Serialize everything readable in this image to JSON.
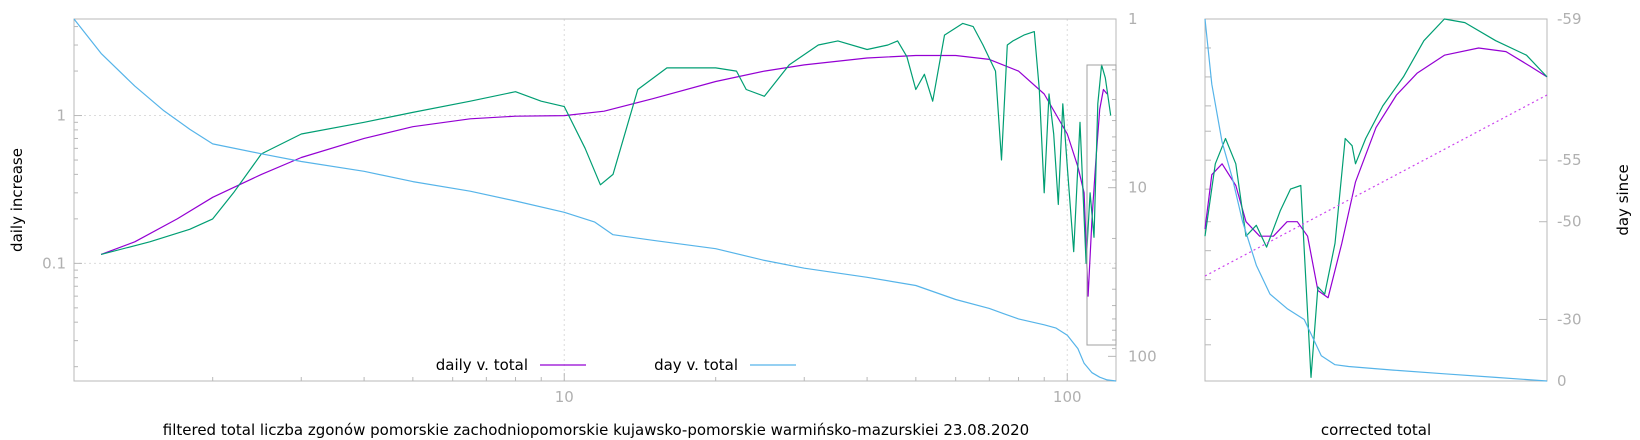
{
  "chart_data": [
    {
      "type": "line",
      "xscale": "log",
      "yscale": "log",
      "xlim": [
        1.06,
        125
      ],
      "ylim": [
        0.016,
        4.5
      ],
      "ylabel": "daily increase",
      "xlabel": "filtered total liczba zgonów pomorskie zachodniopomorskie kujawsko-pomorskie warmińsko-mazurskiei 23.08.2020",
      "x_ticks": [
        10,
        100
      ],
      "y_ticks": [
        {
          "v": 1,
          "label": "1"
        },
        {
          "v": 0.1,
          "label": "0.1"
        }
      ],
      "y2label": "",
      "y2scale": "log",
      "y2lim": [
        1,
        140
      ],
      "y2_ticks": [
        {
          "v": 1,
          "label": "1"
        },
        {
          "v": 10,
          "label": "10"
        },
        {
          "v": 100,
          "label": "100"
        }
      ],
      "legend": {
        "position": "bottom-center"
      },
      "series": [
        {
          "name": "daily v. total",
          "color": "#9400d3",
          "axis": "y",
          "x": [
            1.2,
            1.4,
            1.7,
            2.0,
            2.5,
            3.0,
            4.0,
            5.0,
            6.5,
            8.0,
            10.0,
            12.0,
            15.0,
            20.0,
            25.0,
            30.0,
            40.0,
            50.0,
            60.0,
            70.0,
            80.0,
            90.0,
            100.0,
            105.0,
            108.0,
            110.0,
            112.0,
            114.0,
            116.0,
            118.0,
            120.0
          ],
          "y": [
            0.115,
            0.14,
            0.2,
            0.28,
            0.4,
            0.52,
            0.7,
            0.84,
            0.95,
            0.99,
            1.0,
            1.07,
            1.3,
            1.7,
            2.0,
            2.2,
            2.45,
            2.55,
            2.55,
            2.4,
            2.0,
            1.4,
            0.75,
            0.45,
            0.3,
            0.06,
            0.2,
            0.5,
            1.1,
            1.5,
            1.4
          ]
        },
        {
          "name": "",
          "color": "#009e73",
          "axis": "y",
          "x": [
            1.2,
            1.5,
            1.8,
            2.0,
            2.2,
            2.5,
            3.0,
            4.0,
            5.0,
            6.5,
            8.0,
            9.0,
            10.0,
            11.0,
            11.8,
            12.5,
            14.0,
            16.0,
            20.0,
            22.0,
            23.0,
            25.0,
            28.0,
            32.0,
            35.0,
            40.0,
            44.0,
            46.0,
            48.0,
            50.0,
            52.0,
            54.0,
            57.0,
            62.0,
            65.0,
            68.0,
            72.0,
            74.0,
            76.0,
            78.0,
            82.0,
            86.0,
            88.0,
            90.0,
            92.0,
            94.0,
            96.0,
            98.0,
            100.0,
            103.0,
            106.0,
            109.0,
            111.0,
            113.0,
            115.0,
            117.0,
            119.0,
            122.0
          ],
          "y": [
            0.115,
            0.14,
            0.17,
            0.2,
            0.3,
            0.55,
            0.75,
            0.9,
            1.05,
            1.25,
            1.45,
            1.25,
            1.15,
            0.6,
            0.34,
            0.4,
            1.5,
            2.1,
            2.1,
            2.0,
            1.5,
            1.35,
            2.2,
            3.0,
            3.2,
            2.8,
            3.0,
            3.2,
            2.5,
            1.5,
            1.9,
            1.25,
            3.5,
            4.2,
            4.0,
            3.0,
            2.0,
            0.5,
            3.0,
            3.2,
            3.5,
            3.7,
            1.5,
            0.3,
            1.4,
            0.75,
            0.25,
            1.2,
            0.45,
            0.12,
            0.9,
            0.1,
            0.3,
            0.15,
            1.2,
            2.2,
            1.8,
            1.0
          ]
        },
        {
          "name": "day v. total",
          "color": "#56b4e9",
          "axis": "y2",
          "x": [
            1.06,
            1.2,
            1.4,
            1.6,
            1.8,
            2.0,
            2.5,
            3.0,
            4.0,
            5.0,
            6.5,
            8.0,
            10.0,
            11.5,
            12.5,
            15.0,
            20.0,
            25.0,
            30.0,
            40.0,
            50.0,
            60.0,
            70.0,
            75.0,
            80.0,
            90.0,
            95.0,
            100.0,
            105.0,
            108.0,
            112.0,
            116.0,
            120.0,
            125.0
          ],
          "y": [
            1.0,
            1.6,
            2.5,
            3.5,
            4.5,
            5.5,
            6.3,
            7.0,
            8.0,
            9.2,
            10.5,
            12.0,
            14.0,
            16.0,
            19.0,
            20.5,
            23.0,
            27.0,
            30.0,
            34.0,
            38.0,
            46.0,
            52.0,
            56.0,
            60.0,
            65.0,
            68.0,
            75.0,
            90.0,
            110.0,
            125.0,
            133.0,
            138.0,
            140.0
          ]
        }
      ]
    },
    {
      "type": "line",
      "xlabel": "corrected total",
      "ylabel": "",
      "y2label": "day since",
      "y2_ticks": [
        {
          "v": -59,
          "label": "-59"
        },
        {
          "v": -55,
          "label": "-55"
        },
        {
          "v": -50,
          "label": "-50"
        },
        {
          "v": -30,
          "label": "-30"
        },
        {
          "v": 0,
          "label": "0"
        }
      ],
      "series": [
        {
          "name": "",
          "color": "#9400d3",
          "points": [
            [
              0.0,
              0.58
            ],
            [
              0.02,
              0.43
            ],
            [
              0.05,
              0.4
            ],
            [
              0.09,
              0.46
            ],
            [
              0.12,
              0.56
            ],
            [
              0.16,
              0.6
            ],
            [
              0.2,
              0.6
            ],
            [
              0.24,
              0.56
            ],
            [
              0.27,
              0.56
            ],
            [
              0.3,
              0.6
            ],
            [
              0.33,
              0.75
            ],
            [
              0.36,
              0.77
            ],
            [
              0.4,
              0.62
            ],
            [
              0.44,
              0.45
            ],
            [
              0.5,
              0.3
            ],
            [
              0.56,
              0.21
            ],
            [
              0.62,
              0.15
            ],
            [
              0.7,
              0.1
            ],
            [
              0.8,
              0.08
            ],
            [
              0.88,
              0.09
            ],
            [
              0.95,
              0.13
            ],
            [
              1.0,
              0.16
            ]
          ]
        },
        {
          "name": "",
          "color": "#009e73",
          "points": [
            [
              0.0,
              0.6
            ],
            [
              0.03,
              0.4
            ],
            [
              0.06,
              0.33
            ],
            [
              0.09,
              0.4
            ],
            [
              0.12,
              0.6
            ],
            [
              0.15,
              0.57
            ],
            [
              0.18,
              0.63
            ],
            [
              0.22,
              0.53
            ],
            [
              0.25,
              0.47
            ],
            [
              0.28,
              0.46
            ],
            [
              0.31,
              0.99
            ],
            [
              0.33,
              0.74
            ],
            [
              0.35,
              0.76
            ],
            [
              0.38,
              0.62
            ],
            [
              0.41,
              0.33
            ],
            [
              0.43,
              0.35
            ],
            [
              0.44,
              0.4
            ],
            [
              0.47,
              0.33
            ],
            [
              0.52,
              0.24
            ],
            [
              0.58,
              0.16
            ],
            [
              0.64,
              0.06
            ],
            [
              0.7,
              0.0
            ],
            [
              0.76,
              0.01
            ],
            [
              0.85,
              0.06
            ],
            [
              0.94,
              0.1
            ],
            [
              1.0,
              0.16
            ]
          ]
        },
        {
          "name": "",
          "color": "#56b4e9",
          "points": [
            [
              0.0,
              0.0
            ],
            [
              0.02,
              0.18
            ],
            [
              0.05,
              0.34
            ],
            [
              0.08,
              0.44
            ],
            [
              0.11,
              0.56
            ],
            [
              0.15,
              0.68
            ],
            [
              0.19,
              0.76
            ],
            [
              0.24,
              0.8
            ],
            [
              0.29,
              0.83
            ],
            [
              0.31,
              0.87
            ],
            [
              0.34,
              0.93
            ],
            [
              0.38,
              0.955
            ],
            [
              0.42,
              0.96
            ],
            [
              0.55,
              0.97
            ],
            [
              0.7,
              0.98
            ],
            [
              0.85,
              0.99
            ],
            [
              1.0,
              1.0
            ]
          ]
        },
        {
          "name": "",
          "color": "#cc44ee",
          "dashed": true,
          "points": [
            [
              0.0,
              0.71
            ],
            [
              1.0,
              0.21
            ]
          ]
        }
      ]
    }
  ]
}
